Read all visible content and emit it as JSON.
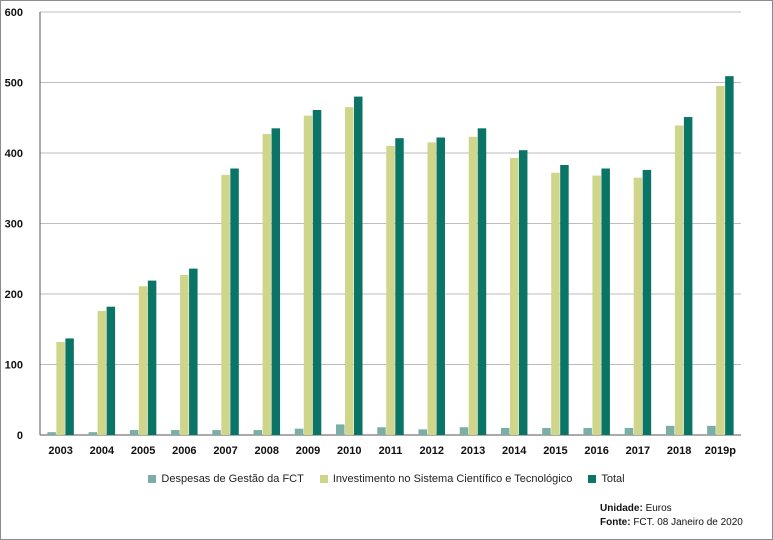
{
  "chart_data": {
    "type": "bar",
    "categories": [
      "2003",
      "2004",
      "2005",
      "2006",
      "2007",
      "2008",
      "2009",
      "2010",
      "2011",
      "2012",
      "2013",
      "2014",
      "2015",
      "2016",
      "2017",
      "2018",
      "2019p"
    ],
    "series": [
      {
        "name": "Despesas de Gestão da FCT",
        "color": "#7aaea6",
        "values": [
          4,
          4,
          7,
          7,
          7,
          7,
          9,
          15,
          11,
          8,
          11,
          10,
          10,
          10,
          10,
          13,
          13
        ]
      },
      {
        "name": "Investimento no Sistema Científico e Tecnológico",
        "color": "#cfd58a",
        "values": [
          132,
          176,
          211,
          227,
          369,
          427,
          453,
          465,
          410,
          415,
          423,
          393,
          372,
          368,
          365,
          439,
          495
        ]
      },
      {
        "name": "Total",
        "color": "#0a7566",
        "values": [
          137,
          182,
          219,
          236,
          378,
          435,
          461,
          480,
          421,
          422,
          435,
          404,
          383,
          378,
          376,
          451,
          509
        ]
      }
    ],
    "ylim": [
      0,
      600
    ],
    "yticks": [
      0,
      100,
      200,
      300,
      400,
      500,
      600
    ],
    "grid": true,
    "legend": "bottom"
  },
  "footer": {
    "unit_label": "Unidade:",
    "unit_value": "Euros",
    "source_label": "Fonte:",
    "source_value": "FCT. 08 Janeiro de 2020"
  }
}
